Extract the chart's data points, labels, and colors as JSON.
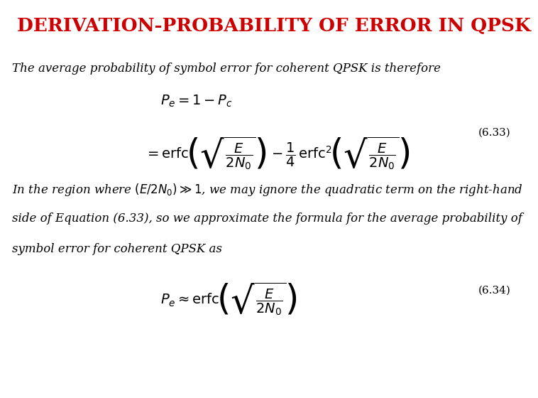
{
  "title": "DERIVATION-PROBABILITY OF ERROR IN QPSK",
  "title_color": "#cc0000",
  "title_fontsize": 19,
  "bg_color": "#ffffff",
  "text1": "The average probability of symbol error for coherent QPSK is therefore",
  "eq1_line1": "$P_e = 1 - P_c$",
  "eq1_line2": "$= \\mathrm{erfc}\\!\\left(\\sqrt{\\dfrac{E}{2N_0}}\\right) - \\dfrac{1}{4}\\,\\mathrm{erfc}^2\\!\\left(\\sqrt{\\dfrac{E}{2N_0}}\\right)$",
  "eq_num1": "(6.33)",
  "text2_line1": "In the region where $(E/2N_0) \\gg 1$, we may ignore the quadratic term on the right-hand",
  "text2_line2": "side of Equation (6.33), so we approximate the formula for the average probability of",
  "text2_line3": "symbol error for coherent QPSK as",
  "eq2": "$P_e \\approx \\mathrm{erfc}\\!\\left(\\sqrt{\\dfrac{E}{2N_0}}\\right)$",
  "eq_num2": "(6.34)",
  "body_fontsize": 12,
  "eq_fontsize": 14,
  "eq_num_fontsize": 11
}
